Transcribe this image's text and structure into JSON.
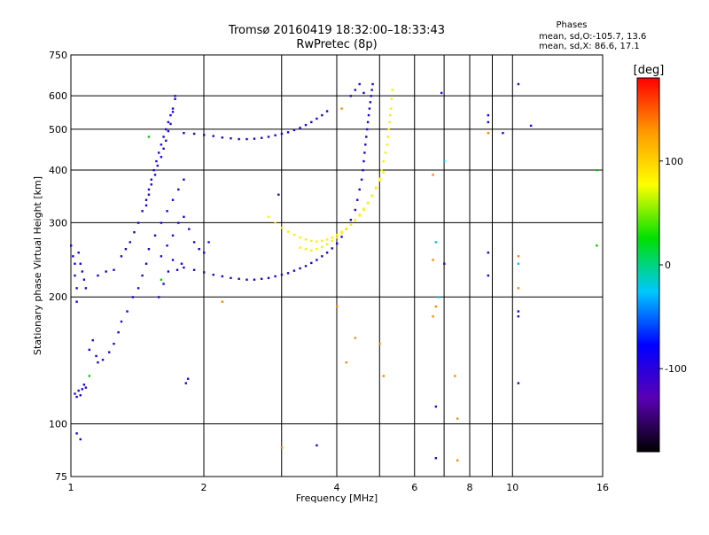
{
  "chart_data": {
    "type": "scatter",
    "title": "Tromsø 20160419 18:32:00–18:33:43",
    "subtitle": "RwPretec (8p)",
    "xlabel": "Frequency [MHz]",
    "ylabel": "Stationary phase Virtual Height [km]",
    "x_scale": "log",
    "y_scale": "log",
    "xlim": [
      1,
      16
    ],
    "ylim": [
      75,
      750
    ],
    "x_ticks": [
      1,
      2,
      4,
      6,
      8,
      10,
      16
    ],
    "y_ticks": [
      75,
      100,
      200,
      300,
      400,
      500,
      600,
      750
    ],
    "x_gridlines": [
      1,
      2,
      3,
      4,
      5,
      6,
      7,
      8,
      9,
      10
    ],
    "y_gridlines": [
      100,
      200,
      300,
      400,
      500,
      600
    ],
    "grid": true,
    "legend": {
      "title": "Phases",
      "lines": [
        "mean, sd,O:-105.7, 13.6",
        "mean, sd,X:  86.6, 17.1"
      ],
      "placement": "top-right"
    },
    "colorbar": {
      "label": "[deg]",
      "range": [
        -180,
        180
      ],
      "ticks": [
        -100,
        0,
        100
      ],
      "colors": [
        "#000000",
        "#5a00b4",
        "#0000ff",
        "#00c8ff",
        "#00e000",
        "#ffff00",
        "#ff9900",
        "#ff0000"
      ]
    },
    "series": [
      {
        "color": "#2000e0",
        "points": [
          [
            1.0,
            265
          ],
          [
            1.01,
            250
          ],
          [
            1.02,
            240
          ],
          [
            1.02,
            225
          ],
          [
            1.03,
            210
          ],
          [
            1.03,
            195
          ],
          [
            1.04,
            255
          ],
          [
            1.05,
            240
          ],
          [
            1.06,
            230
          ],
          [
            1.07,
            220
          ],
          [
            1.08,
            210
          ],
          [
            1.02,
            118
          ],
          [
            1.03,
            116
          ],
          [
            1.04,
            120
          ],
          [
            1.05,
            117
          ],
          [
            1.06,
            121
          ],
          [
            1.07,
            124
          ],
          [
            1.08,
            122
          ],
          [
            1.03,
            95
          ],
          [
            1.05,
            92
          ],
          [
            1.15,
            225
          ],
          [
            1.2,
            230
          ],
          [
            1.25,
            232
          ],
          [
            1.1,
            150
          ],
          [
            1.12,
            158
          ],
          [
            1.14,
            145
          ],
          [
            1.15,
            140
          ],
          [
            1.18,
            142
          ],
          [
            1.22,
            148
          ],
          [
            1.25,
            155
          ],
          [
            1.28,
            165
          ],
          [
            1.3,
            175
          ],
          [
            1.34,
            185
          ],
          [
            1.38,
            200
          ],
          [
            1.42,
            210
          ],
          [
            1.45,
            225
          ],
          [
            1.48,
            240
          ],
          [
            1.3,
            250
          ],
          [
            1.33,
            260
          ],
          [
            1.36,
            270
          ],
          [
            1.39,
            285
          ],
          [
            1.42,
            300
          ],
          [
            1.45,
            320
          ],
          [
            1.48,
            340
          ],
          [
            1.5,
            360
          ],
          [
            1.52,
            380
          ],
          [
            1.54,
            400
          ],
          [
            1.56,
            420
          ],
          [
            1.58,
            440
          ],
          [
            1.6,
            460
          ],
          [
            1.62,
            480
          ],
          [
            1.64,
            500
          ],
          [
            1.66,
            520
          ],
          [
            1.68,
            540
          ],
          [
            1.7,
            560
          ],
          [
            1.72,
            590
          ],
          [
            1.48,
            330
          ],
          [
            1.5,
            350
          ],
          [
            1.52,
            370
          ],
          [
            1.55,
            390
          ],
          [
            1.57,
            410
          ],
          [
            1.6,
            430
          ],
          [
            1.62,
            450
          ],
          [
            1.64,
            470
          ],
          [
            1.66,
            495
          ],
          [
            1.68,
            515
          ],
          [
            1.7,
            550
          ],
          [
            1.72,
            600
          ],
          [
            1.5,
            260
          ],
          [
            1.55,
            280
          ],
          [
            1.6,
            300
          ],
          [
            1.65,
            320
          ],
          [
            1.7,
            340
          ],
          [
            1.75,
            360
          ],
          [
            1.8,
            380
          ],
          [
            1.6,
            250
          ],
          [
            1.65,
            265
          ],
          [
            1.7,
            280
          ],
          [
            1.75,
            300
          ],
          [
            1.8,
            310
          ],
          [
            1.85,
            290
          ],
          [
            1.9,
            270
          ],
          [
            1.95,
            260
          ],
          [
            2.0,
            255
          ],
          [
            2.05,
            270
          ],
          [
            1.58,
            200
          ],
          [
            1.62,
            215
          ],
          [
            1.66,
            230
          ],
          [
            1.7,
            245
          ],
          [
            1.74,
            232
          ],
          [
            1.78,
            240
          ],
          [
            1.82,
            125
          ],
          [
            1.84,
            128
          ],
          [
            1.8,
            490
          ],
          [
            1.9,
            488
          ],
          [
            2.0,
            485
          ],
          [
            2.1,
            482
          ],
          [
            2.2,
            478
          ],
          [
            2.3,
            476
          ],
          [
            2.4,
            474
          ],
          [
            2.5,
            474
          ],
          [
            2.6,
            475
          ],
          [
            2.7,
            477
          ],
          [
            2.8,
            480
          ],
          [
            2.9,
            484
          ],
          [
            3.0,
            488
          ],
          [
            3.1,
            492
          ],
          [
            3.2,
            498
          ],
          [
            3.3,
            504
          ],
          [
            3.4,
            512
          ],
          [
            3.5,
            520
          ],
          [
            3.6,
            530
          ],
          [
            3.7,
            540
          ],
          [
            3.8,
            552
          ],
          [
            1.8,
            235
          ],
          [
            1.9,
            232
          ],
          [
            2.0,
            229
          ],
          [
            2.1,
            226
          ],
          [
            2.2,
            224
          ],
          [
            2.3,
            222
          ],
          [
            2.4,
            221
          ],
          [
            2.5,
            220
          ],
          [
            2.6,
            220
          ],
          [
            2.7,
            221
          ],
          [
            2.8,
            222
          ],
          [
            2.9,
            224
          ],
          [
            3.0,
            226
          ],
          [
            3.1,
            228
          ],
          [
            3.2,
            231
          ],
          [
            3.3,
            234
          ],
          [
            3.4,
            237
          ],
          [
            3.5,
            241
          ],
          [
            3.6,
            245
          ],
          [
            3.7,
            250
          ],
          [
            3.8,
            255
          ],
          [
            3.9,
            261
          ],
          [
            4.0,
            268
          ],
          [
            4.1,
            278
          ],
          [
            4.2,
            290
          ],
          [
            4.3,
            305
          ],
          [
            4.4,
            322
          ],
          [
            4.45,
            340
          ],
          [
            4.5,
            360
          ],
          [
            4.55,
            380
          ],
          [
            4.58,
            400
          ],
          [
            4.6,
            420
          ],
          [
            4.62,
            440
          ],
          [
            4.64,
            460
          ],
          [
            4.66,
            480
          ],
          [
            4.68,
            500
          ],
          [
            4.7,
            520
          ],
          [
            4.72,
            540
          ],
          [
            4.74,
            560
          ],
          [
            4.76,
            580
          ],
          [
            4.78,
            600
          ],
          [
            4.8,
            620
          ],
          [
            4.82,
            640
          ],
          [
            4.3,
            600
          ],
          [
            4.4,
            620
          ],
          [
            4.5,
            640
          ],
          [
            4.6,
            610
          ],
          [
            3.6,
            89
          ],
          [
            2.95,
            350
          ],
          [
            6.7,
            110
          ],
          [
            6.7,
            83
          ],
          [
            6.9,
            610
          ],
          [
            7.0,
            240
          ],
          [
            8.8,
            540
          ],
          [
            8.8,
            520
          ],
          [
            8.8,
            255
          ],
          [
            8.8,
            225
          ],
          [
            10.3,
            185
          ],
          [
            10.3,
            180
          ],
          [
            10.3,
            125
          ],
          [
            10.3,
            640
          ],
          [
            11.0,
            510
          ],
          [
            9.5,
            490
          ]
        ]
      },
      {
        "color": "#ffee00",
        "points": [
          [
            2.8,
            310
          ],
          [
            2.9,
            300
          ],
          [
            3.0,
            292
          ],
          [
            3.1,
            286
          ],
          [
            3.2,
            281
          ],
          [
            3.3,
            277
          ],
          [
            3.4,
            274
          ],
          [
            3.5,
            272
          ],
          [
            3.6,
            271
          ],
          [
            3.7,
            272
          ],
          [
            3.8,
            274
          ],
          [
            3.9,
            277
          ],
          [
            4.0,
            281
          ],
          [
            4.1,
            286
          ],
          [
            4.2,
            291
          ],
          [
            4.3,
            297
          ],
          [
            4.4,
            304
          ],
          [
            4.5,
            312
          ],
          [
            4.6,
            322
          ],
          [
            4.7,
            334
          ],
          [
            4.8,
            348
          ],
          [
            4.9,
            364
          ],
          [
            5.0,
            382
          ],
          [
            5.05,
            400
          ],
          [
            5.1,
            420
          ],
          [
            5.15,
            440
          ],
          [
            5.2,
            460
          ],
          [
            5.22,
            480
          ],
          [
            5.24,
            500
          ],
          [
            5.26,
            520
          ],
          [
            5.28,
            540
          ],
          [
            5.3,
            560
          ],
          [
            5.32,
            590
          ],
          [
            5.34,
            620
          ],
          [
            3.3,
            262
          ],
          [
            3.4,
            260
          ],
          [
            3.5,
            258
          ],
          [
            3.6,
            260
          ],
          [
            3.7,
            263
          ],
          [
            3.8,
            267
          ],
          [
            3.9,
            272
          ],
          [
            4.0,
            277
          ],
          [
            4.1,
            283
          ],
          [
            4.2,
            290
          ],
          [
            4.3,
            297
          ],
          [
            4.4,
            305
          ],
          [
            4.5,
            314
          ],
          [
            4.6,
            324
          ],
          [
            4.7,
            335
          ],
          [
            4.8,
            348
          ],
          [
            4.9,
            362
          ],
          [
            5.0,
            378
          ],
          [
            5.1,
            395
          ]
        ]
      },
      {
        "color": "#ff8800",
        "points": [
          [
            4.0,
            190
          ],
          [
            4.2,
            140
          ],
          [
            4.4,
            160
          ],
          [
            5.0,
            155
          ],
          [
            5.1,
            130
          ],
          [
            6.6,
            390
          ],
          [
            6.6,
            245
          ],
          [
            6.6,
            180
          ],
          [
            6.7,
            190
          ],
          [
            7.4,
            130
          ],
          [
            7.5,
            82
          ],
          [
            7.5,
            103
          ],
          [
            8.8,
            490
          ],
          [
            10.3,
            250
          ],
          [
            10.3,
            210
          ],
          [
            3.0,
            88
          ],
          [
            2.2,
            195
          ],
          [
            4.1,
            560
          ]
        ]
      },
      {
        "color": "#00c0ff",
        "points": [
          [
            6.7,
            270
          ],
          [
            7.0,
            420
          ],
          [
            6.8,
            200
          ],
          [
            10.3,
            240
          ]
        ]
      },
      {
        "color": "#00cc00",
        "points": [
          [
            1.1,
            130
          ],
          [
            1.6,
            220
          ],
          [
            1.5,
            480
          ],
          [
            15.5,
            400
          ],
          [
            15.5,
            265
          ]
        ]
      }
    ]
  }
}
